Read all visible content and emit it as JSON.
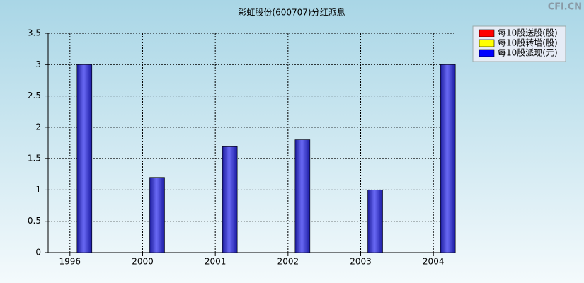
{
  "chart_data": {
    "type": "bar",
    "title": "彩虹股份(600707)分红派息",
    "watermark": "CFi.CN",
    "categories": [
      "1996",
      "2000",
      "2001",
      "2002",
      "2003",
      "2004"
    ],
    "series": [
      {
        "name": "每10股送股(股)",
        "color": "#ff0000",
        "values": [
          null,
          null,
          null,
          null,
          null,
          null
        ]
      },
      {
        "name": "每10股转增(股)",
        "color": "#ffff00",
        "values": [
          null,
          null,
          null,
          null,
          null,
          null
        ]
      },
      {
        "name": "每10股派现(元)",
        "color": "#0000ff",
        "values": [
          3,
          1.2,
          1.69,
          1.8,
          1,
          3
        ]
      }
    ],
    "ylim": [
      0,
      3.5
    ],
    "yticks": [
      0,
      0.5,
      1,
      1.5,
      2,
      2.5,
      3,
      3.5
    ],
    "grid": true
  }
}
